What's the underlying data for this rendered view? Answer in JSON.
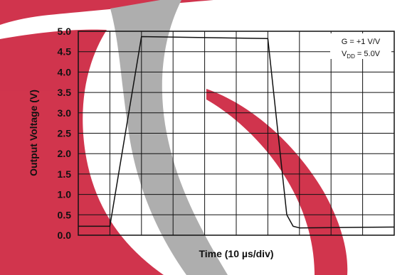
{
  "chart_data": {
    "type": "line",
    "title": "",
    "xlabel": "Time (10 µs/div)",
    "ylabel": "Output Voltage (V)",
    "x_unit_per_div": "10 µs",
    "xlim": [
      0,
      100
    ],
    "ylim": [
      0,
      5.0
    ],
    "y_ticks": [
      "0.0",
      "0.5",
      "1.0",
      "1.5",
      "2.0",
      "2.5",
      "3.0",
      "3.5",
      "4.0",
      "4.5",
      "5.0"
    ],
    "grid": true,
    "annotation_lines": [
      {
        "text": "G = +1 V/V"
      },
      {
        "prefix": "V",
        "sub": "DD",
        "suffix": " = 5.0V"
      }
    ],
    "series": [
      {
        "x": [
          0,
          10,
          20,
          60,
          66,
          68,
          70,
          100
        ],
        "y": [
          0.22,
          0.22,
          4.87,
          4.82,
          0.5,
          0.22,
          0.18,
          0.2
        ]
      }
    ]
  },
  "colors": {
    "line": "#111111",
    "grid": "#111111",
    "watermark_red": "#cc1f3a",
    "watermark_gray": "#a6a6a6"
  }
}
